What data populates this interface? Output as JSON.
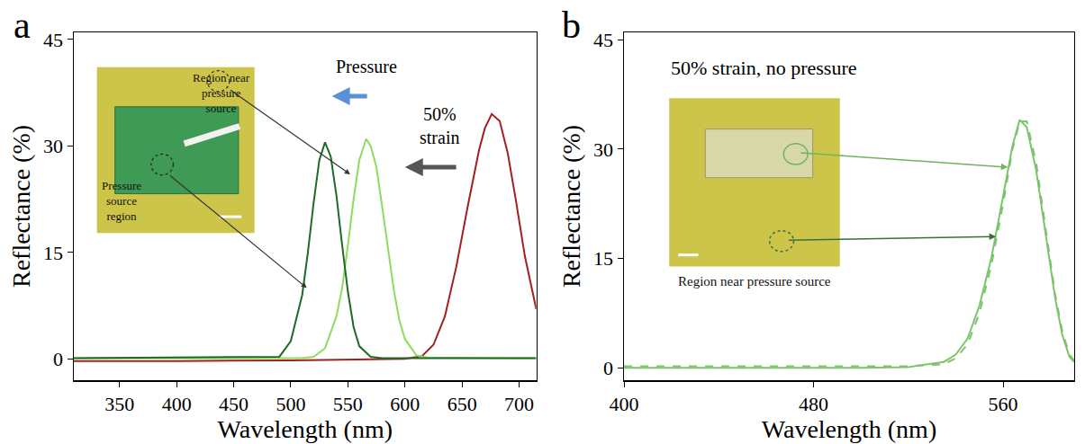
{
  "chart_data": [
    {
      "type": "line",
      "panel": "a",
      "x_label": "Wavelength (nm)",
      "y_label": "Reflectance (%)",
      "xlim": [
        310,
        715
      ],
      "xticks": [
        350,
        400,
        450,
        500,
        550,
        600,
        650,
        700
      ],
      "ylim": [
        -3,
        46
      ],
      "yticks": [
        0,
        15,
        30,
        45
      ],
      "grid": false,
      "annotations": [
        "Pressure",
        "50% strain"
      ],
      "inset_labels": [
        "Region near pressure source",
        "Pressure source region"
      ],
      "series": [
        {
          "color": "#a3201f",
          "line_style": "solid",
          "x": [
            310,
            400,
            500,
            600,
            615,
            625,
            635,
            645,
            655,
            665,
            670,
            676,
            683,
            690,
            697,
            705,
            715
          ],
          "values": [
            -0.3,
            -0.3,
            -0.2,
            0,
            0.4,
            2,
            6,
            13,
            21.5,
            29.5,
            32.5,
            34.5,
            33.5,
            29,
            22.5,
            14.5,
            7
          ]
        },
        {
          "color": "#8fdc5c",
          "line_style": "solid",
          "x": [
            310,
            450,
            510,
            520,
            530,
            540,
            545,
            550,
            555,
            560,
            566,
            570,
            575,
            580,
            585,
            590,
            595,
            600,
            610,
            620,
            700,
            715
          ],
          "values": [
            0.1,
            0.1,
            0.1,
            0.3,
            1.5,
            6,
            10,
            16,
            22.5,
            28,
            31,
            30,
            27,
            21.5,
            15.5,
            10,
            5.5,
            2.8,
            0.5,
            0.2,
            0.1,
            0.1
          ]
        },
        {
          "color": "#1d6b24",
          "line_style": "solid",
          "x": [
            310,
            400,
            450,
            480,
            490,
            500,
            510,
            515,
            520,
            525,
            530,
            535,
            540,
            545,
            550,
            555,
            560,
            570,
            580,
            650,
            715
          ],
          "values": [
            0.1,
            0.2,
            0.2,
            0.2,
            0.3,
            2.5,
            9,
            15,
            22,
            28,
            30.5,
            28.5,
            23,
            16,
            9.5,
            4.5,
            1.8,
            0.3,
            0.1,
            0.1,
            0.1
          ]
        }
      ]
    },
    {
      "type": "line",
      "panel": "b",
      "x_label": "Wavelength (nm)",
      "y_label": "Reflectance (%)",
      "xlim": [
        400,
        590
      ],
      "xticks": [
        400,
        480,
        560
      ],
      "ylim": [
        -1.7,
        46
      ],
      "yticks": [
        0,
        15,
        30,
        45
      ],
      "grid": false,
      "inset_labels": [
        "50% strain, no pressure",
        "Region near pressure source"
      ],
      "series": [
        {
          "color": "#7cc46c",
          "line_style": "solid",
          "x": [
            400,
            450,
            500,
            520,
            535,
            540,
            545,
            550,
            555,
            560,
            564,
            567,
            570,
            574,
            578,
            582,
            585,
            588,
            590
          ],
          "values": [
            0,
            0,
            0,
            0.1,
            0.8,
            1.8,
            4,
            8.5,
            15,
            23.5,
            30.5,
            34,
            33,
            27,
            18,
            9.5,
            4.5,
            1.5,
            0.8
          ]
        },
        {
          "color": "#7cc46c",
          "line_style": "dashed",
          "x": [
            400,
            450,
            500,
            520,
            535,
            540,
            545,
            550,
            555,
            560,
            564,
            567,
            570,
            574,
            578,
            582,
            585,
            588,
            590
          ],
          "values": [
            0.2,
            0.2,
            0.2,
            0.2,
            0.5,
            1.3,
            3.2,
            7.5,
            14,
            22.5,
            30,
            33.8,
            33.8,
            28,
            19,
            10,
            5,
            1.8,
            1
          ]
        }
      ]
    }
  ]
}
